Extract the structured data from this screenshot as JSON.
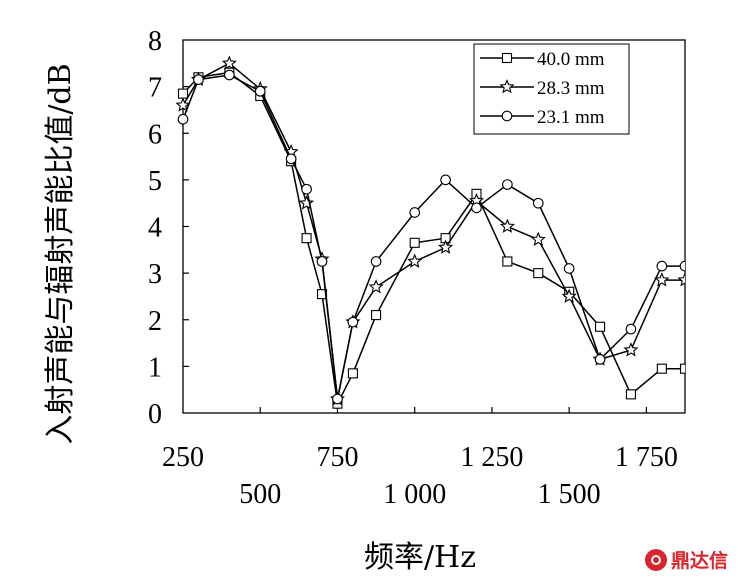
{
  "chart_data": {
    "type": "line",
    "xlabel": "频率/Hz",
    "ylabel": "入射声能与辐射声能比值/dB",
    "xlim": [
      250,
      1875
    ],
    "ylim": [
      0,
      8
    ],
    "grid": false,
    "legend_position": "top-right",
    "x_ticks_upper": [
      {
        "value": 250,
        "label": "250"
      },
      {
        "value": 750,
        "label": "750"
      },
      {
        "value": 1250,
        "label": "1 250"
      },
      {
        "value": 1750,
        "label": "1 750"
      }
    ],
    "x_ticks_lower": [
      {
        "value": 500,
        "label": "500"
      },
      {
        "value": 1000,
        "label": "1 000"
      },
      {
        "value": 1500,
        "label": "1 500"
      }
    ],
    "y_ticks": [
      {
        "value": 0,
        "label": "0"
      },
      {
        "value": 1,
        "label": "1"
      },
      {
        "value": 2,
        "label": "2"
      },
      {
        "value": 3,
        "label": "3"
      },
      {
        "value": 4,
        "label": "4"
      },
      {
        "value": 5,
        "label": "5"
      },
      {
        "value": 6,
        "label": "6"
      },
      {
        "value": 7,
        "label": "7"
      },
      {
        "value": 8,
        "label": "8"
      }
    ],
    "series": [
      {
        "name": "40.0 mm",
        "marker": "square",
        "x": [
          250,
          300,
          400,
          500,
          600,
          650,
          700,
          750,
          800,
          875,
          1000,
          1100,
          1200,
          1300,
          1400,
          1500,
          1600,
          1700,
          1800,
          1875
        ],
        "y": [
          6.85,
          7.2,
          7.3,
          6.8,
          5.4,
          3.75,
          2.55,
          0.2,
          0.85,
          2.1,
          3.65,
          3.75,
          4.7,
          3.25,
          3.0,
          2.6,
          1.85,
          0.4,
          0.95,
          0.95
        ]
      },
      {
        "name": "28.3 mm",
        "marker": "star",
        "x": [
          250,
          300,
          400,
          500,
          600,
          650,
          700,
          750,
          800,
          875,
          1000,
          1100,
          1200,
          1300,
          1400,
          1500,
          1600,
          1700,
          1800,
          1875
        ],
        "y": [
          6.6,
          7.15,
          7.5,
          6.95,
          5.6,
          4.5,
          3.3,
          0.3,
          1.95,
          2.7,
          3.25,
          3.55,
          4.55,
          4.0,
          3.72,
          2.5,
          1.15,
          1.35,
          2.85,
          2.85
        ]
      },
      {
        "name": "23.1 mm",
        "marker": "circle",
        "x": [
          250,
          300,
          400,
          500,
          600,
          650,
          700,
          750,
          800,
          875,
          1000,
          1100,
          1200,
          1300,
          1400,
          1500,
          1600,
          1700,
          1800,
          1875
        ],
        "y": [
          6.3,
          7.15,
          7.25,
          6.9,
          5.45,
          4.8,
          3.25,
          0.3,
          1.95,
          3.25,
          4.3,
          5.0,
          4.4,
          4.9,
          4.5,
          3.1,
          1.15,
          1.8,
          3.15,
          3.15
        ]
      }
    ]
  },
  "watermark": {
    "text": "鼎达信",
    "logo_icon": "circle-logo-icon",
    "color": "#d9262e"
  }
}
